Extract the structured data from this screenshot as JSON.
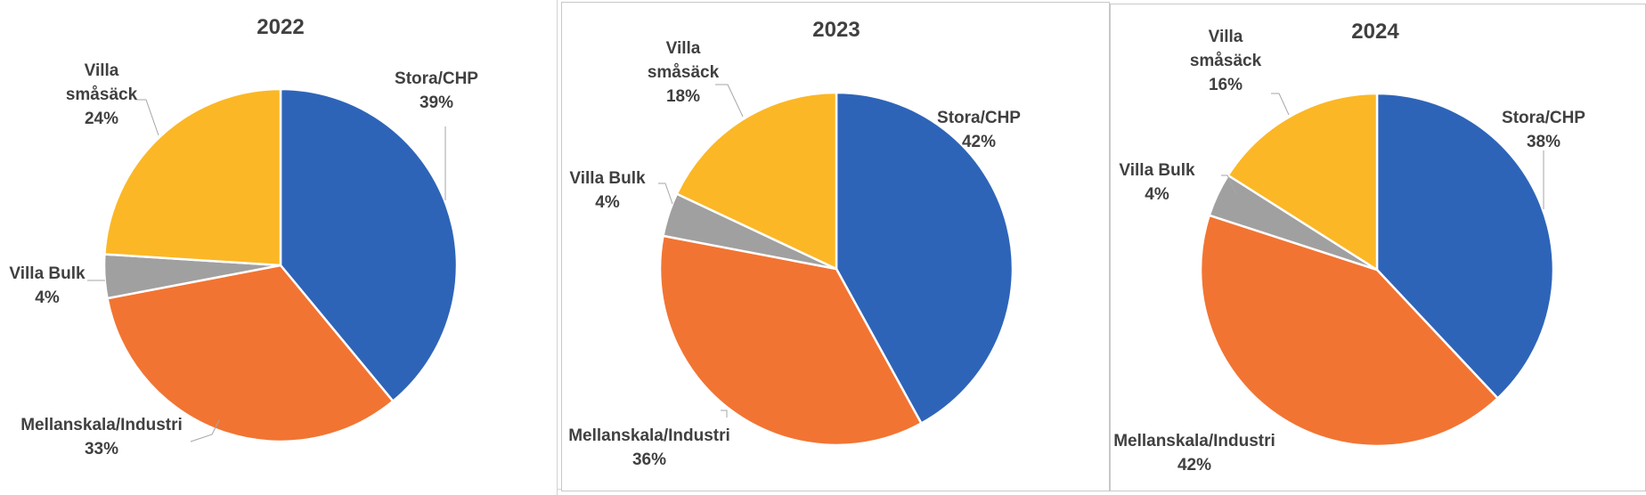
{
  "chart_data": [
    {
      "type": "pie",
      "title": "2022",
      "slices": [
        {
          "label": "Stora/CHP",
          "value": 39,
          "color": "#2e64b8"
        },
        {
          "label": "Mellanskala/Industri",
          "value": 33,
          "color": "#f27432"
        },
        {
          "label": "Villa Bulk",
          "value": 4,
          "color": "#a0a0a0"
        },
        {
          "label": "Villa småsäck",
          "value": 24,
          "color": "#fbb726"
        }
      ],
      "data_labels": [
        {
          "name": "Stora/CHP",
          "pct": "39%"
        },
        {
          "name": "Mellanskala/Industri",
          "pct": "33%"
        },
        {
          "name": "Villa Bulk",
          "pct": "4%"
        },
        {
          "name": "Villa\nsmåsäck",
          "pct": "24%"
        }
      ]
    },
    {
      "type": "pie",
      "title": "2023",
      "slices": [
        {
          "label": "Stora/CHP",
          "value": 42,
          "color": "#2e64b8"
        },
        {
          "label": "Mellanskala/Industri",
          "value": 36,
          "color": "#f27432"
        },
        {
          "label": "Villa Bulk",
          "value": 4,
          "color": "#a0a0a0"
        },
        {
          "label": "Villa småsäck",
          "value": 18,
          "color": "#fbb726"
        }
      ],
      "data_labels": [
        {
          "name": "Stora/CHP",
          "pct": "42%"
        },
        {
          "name": "Mellanskala/Industri",
          "pct": "36%"
        },
        {
          "name": "Villa Bulk",
          "pct": "4%"
        },
        {
          "name": "Villa\nsmåsäck",
          "pct": "18%"
        }
      ]
    },
    {
      "type": "pie",
      "title": "2024",
      "slices": [
        {
          "label": "Stora/CHP",
          "value": 38,
          "color": "#2e64b8"
        },
        {
          "label": "Mellanskala/Industri",
          "value": 42,
          "color": "#f27432"
        },
        {
          "label": "Villa Bulk",
          "value": 4,
          "color": "#a0a0a0"
        },
        {
          "label": "Villa småsäck",
          "value": 16,
          "color": "#fbb726"
        }
      ],
      "data_labels": [
        {
          "name": "Stora/CHP",
          "pct": "38%"
        },
        {
          "name": "Mellanskala/Industri",
          "pct": "42%"
        },
        {
          "name": "Villa Bulk",
          "pct": "4%"
        },
        {
          "name": "Villa\nsmåsäck",
          "pct": "16%"
        }
      ]
    }
  ]
}
